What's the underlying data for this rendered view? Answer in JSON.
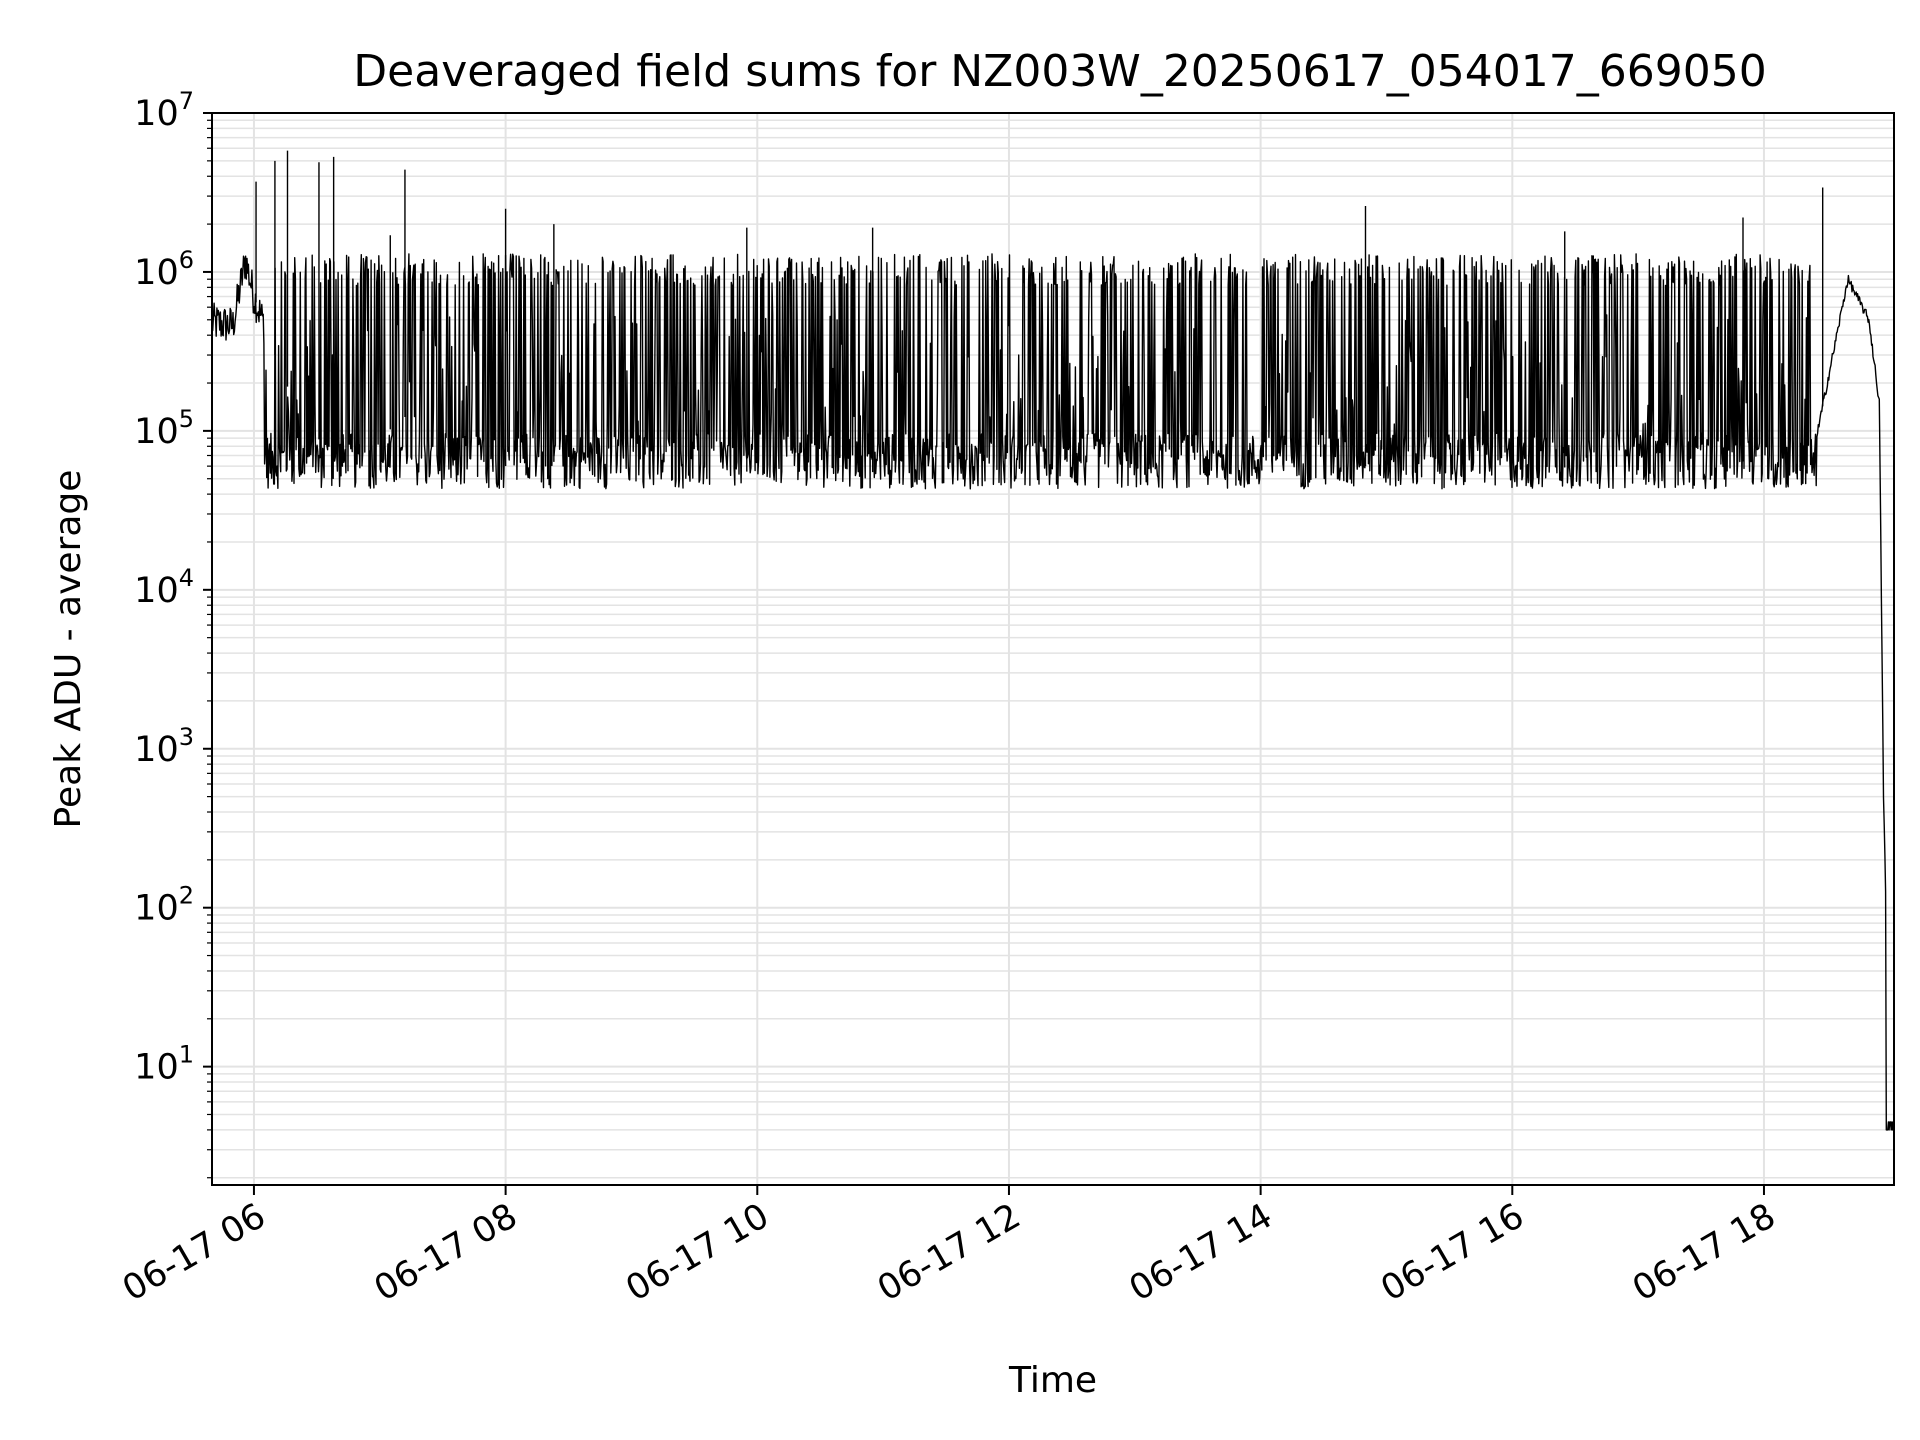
{
  "chart_data": {
    "type": "line",
    "title": "Deaveraged field sums for NZ003W_20250617_054017_669050",
    "xlabel": "Time",
    "ylabel": "Peak ADU - average",
    "xlim": [
      "06-17 05:40",
      "06-17 19:02"
    ],
    "ylim": [
      1.8,
      10000000
    ],
    "yscale": "log",
    "grid": true,
    "x_ticks": [
      "06-17 06",
      "06-17 08",
      "06-17 10",
      "06-17 12",
      "06-17 14",
      "06-17 16",
      "06-17 18"
    ],
    "y_ticks": [
      {
        "base": "10",
        "exp": "1",
        "value": 10
      },
      {
        "base": "10",
        "exp": "2",
        "value": 100
      },
      {
        "base": "10",
        "exp": "3",
        "value": 1000
      },
      {
        "base": "10",
        "exp": "4",
        "value": 10000
      },
      {
        "base": "10",
        "exp": "5",
        "value": 100000
      },
      {
        "base": "10",
        "exp": "6",
        "value": 1000000
      },
      {
        "base": "10",
        "exp": "7",
        "value": 10000000
      }
    ],
    "series": [
      {
        "color": "#000000",
        "x": [
          "06-17 05:40",
          "06-17 05:50",
          "06-17 05:56",
          "06-17 06:00",
          "06-17 06:10",
          "06-17 06:20",
          "06-17 06:30",
          "06-17 06:40",
          "06-17 07:00",
          "06-17 07:20",
          "06-17 07:40",
          "06-17 08:00",
          "06-17 08:30",
          "06-17 09:00",
          "06-17 10:00",
          "06-17 11:00",
          "06-17 12:00",
          "06-17 13:00",
          "06-17 14:00",
          "06-17 15:00",
          "06-17 16:00",
          "06-17 17:00",
          "06-17 18:00",
          "06-17 18:25",
          "06-17 18:40",
          "06-17 18:50",
          "06-17 18:55",
          "06-17 18:57",
          "06-17 18:58",
          "06-17 19:00",
          "06-17 19:02"
        ],
        "y": [
          480000,
          460000,
          1200000,
          700000,
          300000,
          140000,
          90000,
          75000,
          90000,
          150000,
          70000,
          60000,
          65000,
          60000,
          55000,
          55000,
          60000,
          65000,
          60000,
          60000,
          58000,
          60000,
          65000,
          90000,
          900000,
          500000,
          150000,
          500,
          130,
          4,
          4
        ]
      }
    ],
    "band": {
      "x_start": "06-17 06:05",
      "x_end": "06-17 18:25",
      "high": 1300000,
      "low": 55000
    },
    "spikes": [
      {
        "x": "06-17 06:01",
        "y": 3700000
      },
      {
        "x": "06-17 06:10",
        "y": 5000000
      },
      {
        "x": "06-17 06:16",
        "y": 5800000
      },
      {
        "x": "06-17 06:31",
        "y": 4900000
      },
      {
        "x": "06-17 06:38",
        "y": 5300000
      },
      {
        "x": "06-17 07:12",
        "y": 4400000
      },
      {
        "x": "06-17 07:05",
        "y": 1700000
      },
      {
        "x": "06-17 08:00",
        "y": 2500000
      },
      {
        "x": "06-17 08:23",
        "y": 2000000
      },
      {
        "x": "06-17 09:55",
        "y": 1900000
      },
      {
        "x": "06-17 10:55",
        "y": 1900000
      },
      {
        "x": "06-17 14:50",
        "y": 2600000
      },
      {
        "x": "06-17 16:25",
        "y": 1800000
      },
      {
        "x": "06-17 17:50",
        "y": 2200000
      },
      {
        "x": "06-17 18:28",
        "y": 3400000
      }
    ]
  }
}
